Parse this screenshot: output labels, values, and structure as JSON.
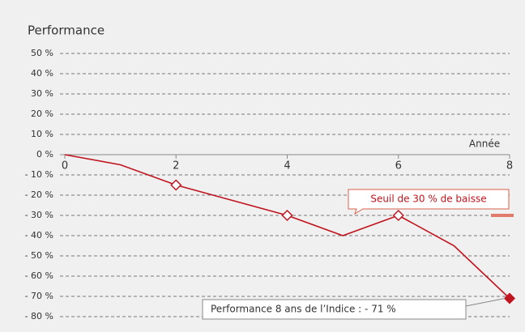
{
  "chart_data": {
    "type": "line",
    "title": "Performance",
    "x_label": "Année",
    "x": [
      0,
      1,
      2,
      3,
      4,
      5,
      6,
      7,
      8
    ],
    "series": [
      {
        "name": "Performance",
        "color": "#c0141e",
        "values": [
          0,
          -5,
          -15,
          -22.5,
          -30,
          -40,
          -30,
          -45,
          -71
        ],
        "markers": [
          "none",
          "none",
          "open-diamond",
          "none",
          "open-diamond",
          "none",
          "open-diamond",
          "none",
          "filled-diamond"
        ]
      }
    ],
    "xlim": [
      0,
      8
    ],
    "xticks": [
      0,
      2,
      4,
      6,
      8
    ],
    "ylim": [
      -80,
      50
    ],
    "yticks": [
      {
        "value": -80,
        "label": "- 80 %"
      },
      {
        "value": -70,
        "label": "- 70 %"
      },
      {
        "value": -60,
        "label": "- 60 %"
      },
      {
        "value": -50,
        "label": "- 50 %"
      },
      {
        "value": -40,
        "label": "- 40 %"
      },
      {
        "value": -30,
        "label": "- 30 %"
      },
      {
        "value": -20,
        "label": "- 20 %"
      },
      {
        "value": -10,
        "label": "- 10 %"
      },
      {
        "value": 0,
        "label": "0 %"
      },
      {
        "value": 10,
        "label": "10 %"
      },
      {
        "value": 20,
        "label": "20 %"
      },
      {
        "value": 30,
        "label": "30 %"
      },
      {
        "value": 40,
        "label": "40 %"
      },
      {
        "value": 50,
        "label": "50 %"
      }
    ],
    "grid": true,
    "threshold": -30,
    "threshold_label": "Seuil de 30 % de baisse",
    "final_annotation": "Performance 8 ans de l’Indice : - 71 %"
  }
}
